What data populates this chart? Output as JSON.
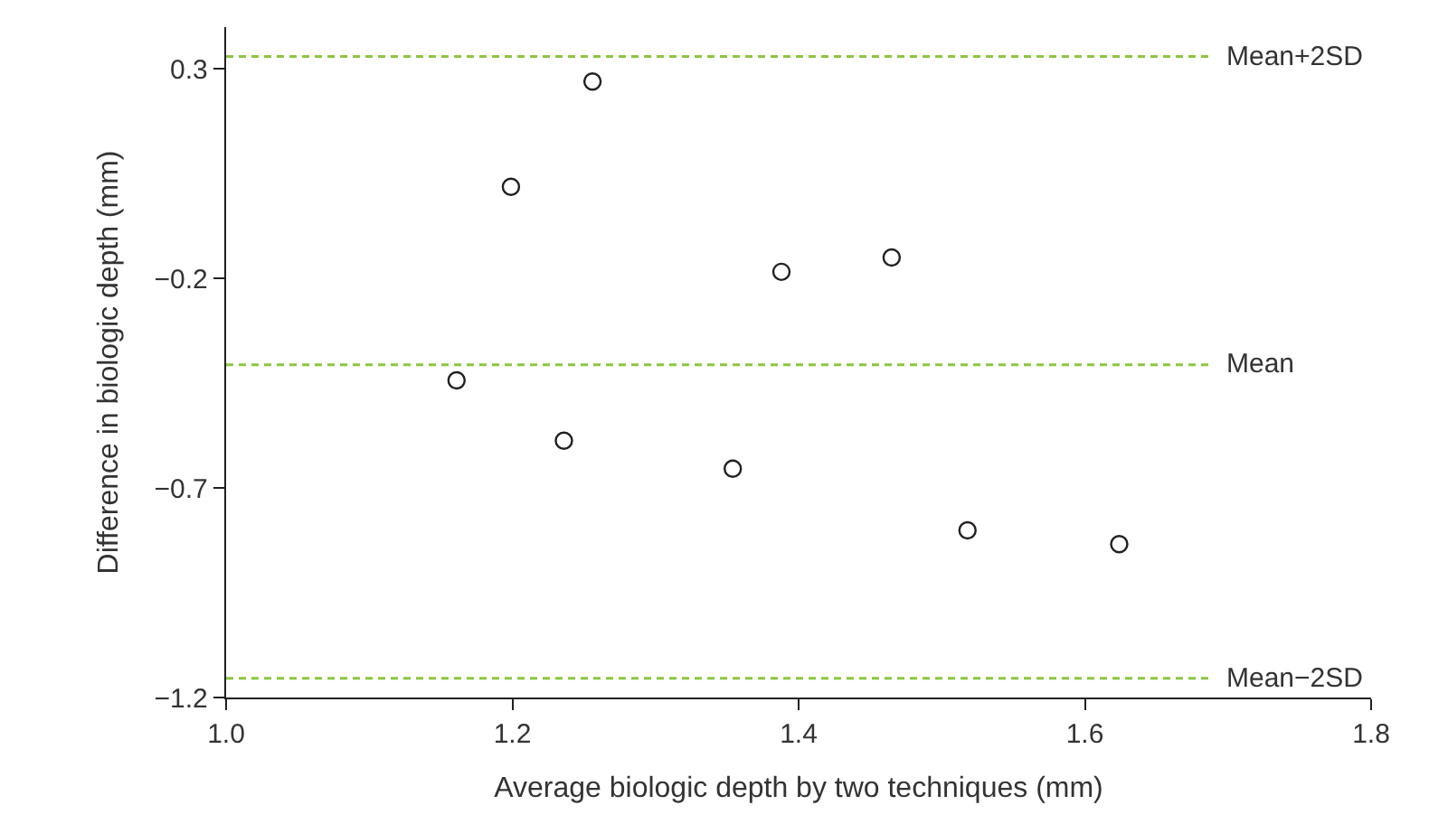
{
  "chart_data": {
    "type": "scatter",
    "xlabel": "Average biologic depth by two techniques (mm)",
    "ylabel": "Difference in biologic depth (mm)",
    "x": [
      1.161,
      1.199,
      1.256,
      1.236,
      1.354,
      1.388,
      1.465,
      1.518,
      1.624
    ],
    "values": [
      -0.443,
      0.019,
      0.27,
      -0.587,
      -0.654,
      -0.184,
      -0.15,
      -0.801,
      -0.834
    ],
    "color": "#231f20",
    "marker": "circle",
    "xlim": [
      1.0,
      1.8
    ],
    "xticks": [
      {
        "value": 1.0,
        "label": "1.0"
      },
      1.2,
      1.4,
      1.6,
      {
        "value": 1.8,
        "label": "1.8"
      }
    ],
    "ylim": [
      -1.2,
      0.4
    ],
    "yticks": [
      0.3,
      {
        "value": -0.2,
        "label": "−0.2"
      },
      {
        "value": -0.7,
        "label": "−0.7"
      },
      {
        "value": -1.2,
        "label": "−1.2"
      }
    ],
    "grid": false,
    "legend": false,
    "ref_lines": [
      {
        "axis": "y",
        "value": 0.33,
        "label": "Mean+2SD",
        "color": "#8cc63f",
        "line_style": "dashed"
      },
      {
        "axis": "y",
        "value": -0.406,
        "label": "Mean",
        "color": "#8cc63f",
        "line_style": "dashed"
      },
      {
        "axis": "y",
        "value": -1.154,
        "label": "Mean−2SD",
        "color": "#8cc63f",
        "line_style": "dashed"
      }
    ]
  }
}
